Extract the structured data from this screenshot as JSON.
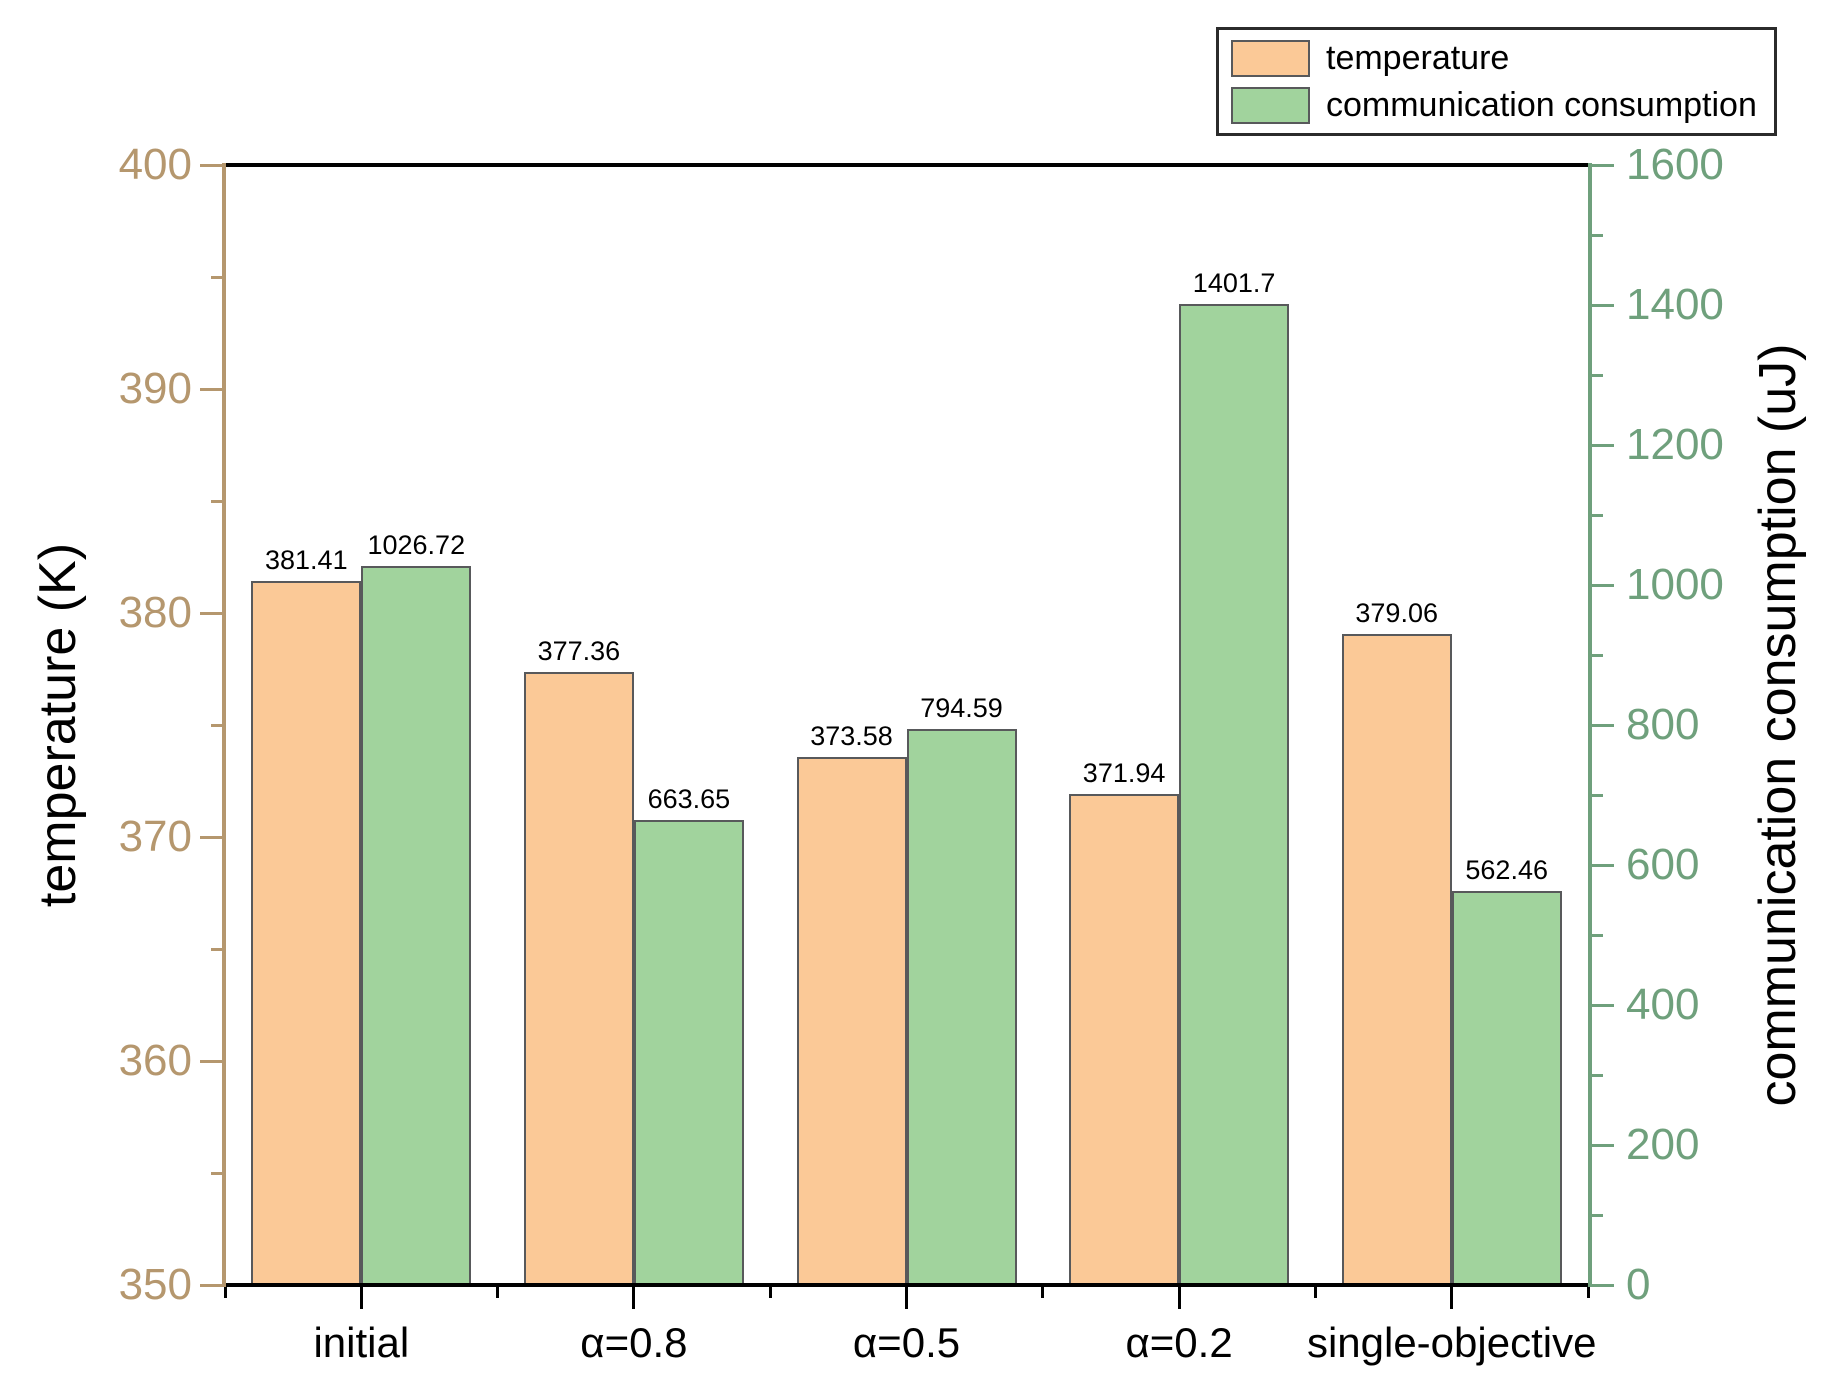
{
  "chart_data": {
    "type": "bar",
    "categories": [
      "initial",
      "α=0.8",
      "α=0.5",
      "α=0.2",
      "single-objective"
    ],
    "series": [
      {
        "name": "temperature",
        "axis": "left",
        "color": "#FBC997",
        "values": [
          381.41,
          377.36,
          373.58,
          371.94,
          379.06
        ],
        "value_labels": [
          "381.41",
          "377.36",
          "373.58",
          "371.94",
          "379.06"
        ]
      },
      {
        "name": "communication consumption",
        "axis": "right",
        "color": "#A1D39D",
        "values": [
          1026.72,
          663.65,
          794.59,
          1401.7,
          562.46
        ],
        "value_labels": [
          "1026.72",
          "663.65",
          "794.59",
          "1401.7",
          "562.46"
        ]
      }
    ],
    "left_axis": {
      "label": "temperature (K)",
      "min": 350,
      "max": 400,
      "major_ticks": [
        400,
        390,
        380,
        370,
        360,
        350
      ],
      "minor_ticks": [
        395,
        385,
        375,
        365,
        355
      ],
      "color": "#B5976E"
    },
    "right_axis": {
      "label": "communication consumption (uJ)",
      "min": 0,
      "max": 1600,
      "major_ticks": [
        1600,
        1400,
        1200,
        1000,
        800,
        600,
        400,
        200,
        0
      ],
      "minor_ticks": [
        1500,
        1300,
        1100,
        900,
        700,
        500,
        300,
        100
      ],
      "color": "#6FA07C"
    },
    "legend": {
      "entries": [
        "temperature",
        "communication consumption"
      ],
      "position": "top-right"
    },
    "styles": {
      "bar_border_color": "#58595B",
      "frame_color": "#000000",
      "value_label_color": "#000000"
    }
  }
}
